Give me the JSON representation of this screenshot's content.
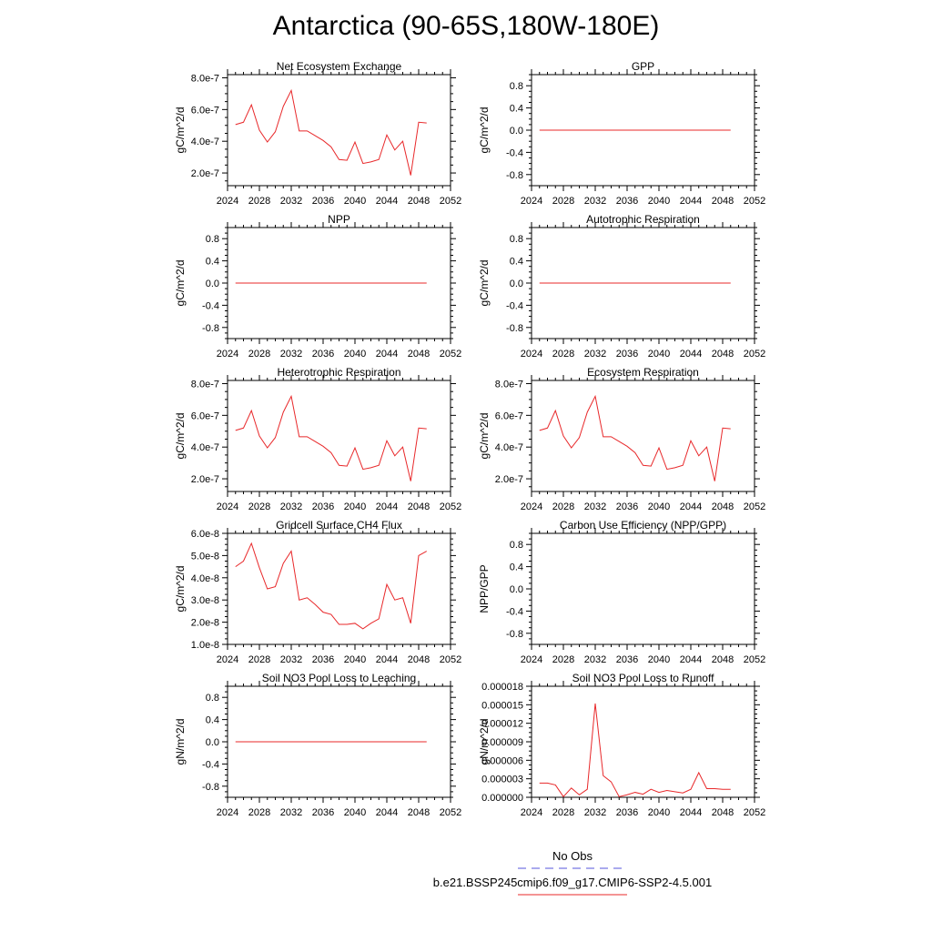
{
  "title": "Antarctica (90-65S,180W-180E)",
  "legend": {
    "obs_label": "No Obs",
    "obs_color": "#5555dd",
    "model_label": "b.e21.BSSP245cmip6.f09_g17.CMIP6-SSP2-4.5.001",
    "model_color": "#e8282a"
  },
  "chart_data": [
    {
      "type": "line",
      "title": "Net Ecosystem Exchange",
      "ylabel": "gC/m^2/d",
      "xlim": [
        2024,
        2052
      ],
      "xticks": [
        2024,
        2028,
        2032,
        2036,
        2040,
        2044,
        2048,
        2052
      ],
      "ylim": [
        1.2e-07,
        8.2e-07
      ],
      "yticks": [
        2e-07,
        4e-07,
        6e-07,
        8e-07
      ],
      "ytick_labels": [
        "2.0e-7",
        "4.0e-7",
        "6.0e-7",
        "8.0e-7"
      ],
      "series": [
        {
          "x": [
            2025,
            2026,
            2027,
            2028,
            2029,
            2030,
            2031,
            2032,
            2033,
            2034,
            2035,
            2036,
            2037,
            2038,
            2039,
            2040,
            2041,
            2042,
            2043,
            2044,
            2045,
            2046,
            2047,
            2048,
            2049
          ],
          "y": [
            5.05e-07,
            5.2e-07,
            6.3e-07,
            4.7e-07,
            3.95e-07,
            4.6e-07,
            6.2e-07,
            7.2e-07,
            4.65e-07,
            4.65e-07,
            4.35e-07,
            4.05e-07,
            3.65e-07,
            2.85e-07,
            2.8e-07,
            3.95e-07,
            2.6e-07,
            2.7e-07,
            2.85e-07,
            4.4e-07,
            3.45e-07,
            4e-07,
            1.85e-07,
            5.2e-07,
            5.15e-07
          ]
        }
      ]
    },
    {
      "type": "line",
      "title": "GPP",
      "ylabel": "gC/m^2/d",
      "xlim": [
        2024,
        2052
      ],
      "xticks": [
        2024,
        2028,
        2032,
        2036,
        2040,
        2044,
        2048,
        2052
      ],
      "ylim": [
        -1,
        1
      ],
      "yticks": [
        -0.8,
        -0.4,
        0,
        0.4,
        0.8
      ],
      "ytick_labels": [
        "-0.8",
        "-0.4",
        "0.0",
        "0.4",
        "0.8"
      ],
      "series": [
        {
          "x": [
            2025,
            2026,
            2027,
            2028,
            2029,
            2030,
            2031,
            2032,
            2033,
            2034,
            2035,
            2036,
            2037,
            2038,
            2039,
            2040,
            2041,
            2042,
            2043,
            2044,
            2045,
            2046,
            2047,
            2048,
            2049
          ],
          "y": [
            0,
            0,
            0,
            0,
            0,
            0,
            0,
            0,
            0,
            0,
            0,
            0,
            0,
            0,
            0,
            0,
            0,
            0,
            0,
            0,
            0,
            0,
            0,
            0,
            0
          ]
        }
      ]
    },
    {
      "type": "line",
      "title": "NPP",
      "ylabel": "gC/m^2/d",
      "xlim": [
        2024,
        2052
      ],
      "xticks": [
        2024,
        2028,
        2032,
        2036,
        2040,
        2044,
        2048,
        2052
      ],
      "ylim": [
        -1,
        1
      ],
      "yticks": [
        -0.8,
        -0.4,
        0,
        0.4,
        0.8
      ],
      "ytick_labels": [
        "-0.8",
        "-0.4",
        "0.0",
        "0.4",
        "0.8"
      ],
      "series": [
        {
          "x": [
            2025,
            2026,
            2027,
            2028,
            2029,
            2030,
            2031,
            2032,
            2033,
            2034,
            2035,
            2036,
            2037,
            2038,
            2039,
            2040,
            2041,
            2042,
            2043,
            2044,
            2045,
            2046,
            2047,
            2048,
            2049
          ],
          "y": [
            0,
            0,
            0,
            0,
            0,
            0,
            0,
            0,
            0,
            0,
            0,
            0,
            0,
            0,
            0,
            0,
            0,
            0,
            0,
            0,
            0,
            0,
            0,
            0,
            0
          ]
        }
      ]
    },
    {
      "type": "line",
      "title": "Autotrophic Respiration",
      "ylabel": "gC/m^2/d",
      "xlim": [
        2024,
        2052
      ],
      "xticks": [
        2024,
        2028,
        2032,
        2036,
        2040,
        2044,
        2048,
        2052
      ],
      "ylim": [
        -1,
        1
      ],
      "yticks": [
        -0.8,
        -0.4,
        0,
        0.4,
        0.8
      ],
      "ytick_labels": [
        "-0.8",
        "-0.4",
        "0.0",
        "0.4",
        "0.8"
      ],
      "series": [
        {
          "x": [
            2025,
            2026,
            2027,
            2028,
            2029,
            2030,
            2031,
            2032,
            2033,
            2034,
            2035,
            2036,
            2037,
            2038,
            2039,
            2040,
            2041,
            2042,
            2043,
            2044,
            2045,
            2046,
            2047,
            2048,
            2049
          ],
          "y": [
            0,
            0,
            0,
            0,
            0,
            0,
            0,
            0,
            0,
            0,
            0,
            0,
            0,
            0,
            0,
            0,
            0,
            0,
            0,
            0,
            0,
            0,
            0,
            0,
            0
          ]
        }
      ]
    },
    {
      "type": "line",
      "title": "Heterotrophic Respiration",
      "ylabel": "gC/m^2/d",
      "xlim": [
        2024,
        2052
      ],
      "xticks": [
        2024,
        2028,
        2032,
        2036,
        2040,
        2044,
        2048,
        2052
      ],
      "ylim": [
        1.2e-07,
        8.2e-07
      ],
      "yticks": [
        2e-07,
        4e-07,
        6e-07,
        8e-07
      ],
      "ytick_labels": [
        "2.0e-7",
        "4.0e-7",
        "6.0e-7",
        "8.0e-7"
      ],
      "series": [
        {
          "x": [
            2025,
            2026,
            2027,
            2028,
            2029,
            2030,
            2031,
            2032,
            2033,
            2034,
            2035,
            2036,
            2037,
            2038,
            2039,
            2040,
            2041,
            2042,
            2043,
            2044,
            2045,
            2046,
            2047,
            2048,
            2049
          ],
          "y": [
            5.05e-07,
            5.2e-07,
            6.3e-07,
            4.7e-07,
            3.95e-07,
            4.6e-07,
            6.2e-07,
            7.2e-07,
            4.65e-07,
            4.65e-07,
            4.35e-07,
            4.05e-07,
            3.65e-07,
            2.85e-07,
            2.8e-07,
            3.95e-07,
            2.6e-07,
            2.7e-07,
            2.85e-07,
            4.4e-07,
            3.45e-07,
            4e-07,
            1.85e-07,
            5.2e-07,
            5.15e-07
          ]
        }
      ]
    },
    {
      "type": "line",
      "title": "Ecosystem Respiration",
      "ylabel": "gC/m^2/d",
      "xlim": [
        2024,
        2052
      ],
      "xticks": [
        2024,
        2028,
        2032,
        2036,
        2040,
        2044,
        2048,
        2052
      ],
      "ylim": [
        1.2e-07,
        8.2e-07
      ],
      "yticks": [
        2e-07,
        4e-07,
        6e-07,
        8e-07
      ],
      "ytick_labels": [
        "2.0e-7",
        "4.0e-7",
        "6.0e-7",
        "8.0e-7"
      ],
      "series": [
        {
          "x": [
            2025,
            2026,
            2027,
            2028,
            2029,
            2030,
            2031,
            2032,
            2033,
            2034,
            2035,
            2036,
            2037,
            2038,
            2039,
            2040,
            2041,
            2042,
            2043,
            2044,
            2045,
            2046,
            2047,
            2048,
            2049
          ],
          "y": [
            5.05e-07,
            5.2e-07,
            6.3e-07,
            4.7e-07,
            3.95e-07,
            4.6e-07,
            6.2e-07,
            7.2e-07,
            4.65e-07,
            4.65e-07,
            4.35e-07,
            4.05e-07,
            3.65e-07,
            2.85e-07,
            2.8e-07,
            3.95e-07,
            2.6e-07,
            2.7e-07,
            2.85e-07,
            4.4e-07,
            3.45e-07,
            4e-07,
            1.85e-07,
            5.2e-07,
            5.15e-07
          ]
        }
      ]
    },
    {
      "type": "line",
      "title": "Gridcell Surface CH4 Flux",
      "ylabel": "gC/m^2/d",
      "xlim": [
        2024,
        2052
      ],
      "xticks": [
        2024,
        2028,
        2032,
        2036,
        2040,
        2044,
        2048,
        2052
      ],
      "ylim": [
        1e-08,
        6e-08
      ],
      "yticks": [
        1e-08,
        2e-08,
        3e-08,
        4e-08,
        5e-08,
        6e-08
      ],
      "ytick_labels": [
        "1.0e-8",
        "2.0e-8",
        "3.0e-8",
        "4.0e-8",
        "5.0e-8",
        "6.0e-8"
      ],
      "series": [
        {
          "x": [
            2025,
            2026,
            2027,
            2028,
            2029,
            2030,
            2031,
            2032,
            2033,
            2034,
            2035,
            2036,
            2037,
            2038,
            2039,
            2040,
            2041,
            2042,
            2043,
            2044,
            2045,
            2046,
            2047,
            2048,
            2049
          ],
          "y": [
            4.5e-08,
            4.75e-08,
            5.55e-08,
            4.45e-08,
            3.5e-08,
            3.6e-08,
            4.65e-08,
            5.2e-08,
            3e-08,
            3.1e-08,
            2.8e-08,
            2.45e-08,
            2.35e-08,
            1.9e-08,
            1.9e-08,
            1.95e-08,
            1.7e-08,
            1.95e-08,
            2.15e-08,
            3.7e-08,
            3e-08,
            3.1e-08,
            1.95e-08,
            5e-08,
            5.2e-08
          ]
        }
      ]
    },
    {
      "type": "line",
      "title": "Carbon Use Efficiency (NPP/GPP)",
      "ylabel": "NPP/GPP",
      "xlim": [
        2024,
        2052
      ],
      "xticks": [
        2024,
        2028,
        2032,
        2036,
        2040,
        2044,
        2048,
        2052
      ],
      "ylim": [
        -1,
        1
      ],
      "yticks": [
        -0.8,
        -0.4,
        0,
        0.4,
        0.8
      ],
      "ytick_labels": [
        "-0.8",
        "-0.4",
        "0.0",
        "0.4",
        "0.8"
      ],
      "series": []
    },
    {
      "type": "line",
      "title": "Soil NO3 Pool Loss to Leaching",
      "ylabel": "gN/m^2/d",
      "xlim": [
        2024,
        2052
      ],
      "xticks": [
        2024,
        2028,
        2032,
        2036,
        2040,
        2044,
        2048,
        2052
      ],
      "ylim": [
        -1,
        1
      ],
      "yticks": [
        -0.8,
        -0.4,
        0,
        0.4,
        0.8
      ],
      "ytick_labels": [
        "-0.8",
        "-0.4",
        "0.0",
        "0.4",
        "0.8"
      ],
      "series": [
        {
          "x": [
            2025,
            2026,
            2027,
            2028,
            2029,
            2030,
            2031,
            2032,
            2033,
            2034,
            2035,
            2036,
            2037,
            2038,
            2039,
            2040,
            2041,
            2042,
            2043,
            2044,
            2045,
            2046,
            2047,
            2048,
            2049
          ],
          "y": [
            0,
            0,
            0,
            0,
            0,
            0,
            0,
            0,
            0,
            0,
            0,
            0,
            0,
            0,
            0,
            0,
            0,
            0,
            0,
            0,
            0,
            0,
            0,
            0,
            0
          ]
        }
      ]
    },
    {
      "type": "line",
      "title": "Soil NO3 Pool Loss to Runoff",
      "ylabel": "gN/m^2/d",
      "xlim": [
        2024,
        2052
      ],
      "xticks": [
        2024,
        2028,
        2032,
        2036,
        2040,
        2044,
        2048,
        2052
      ],
      "ylim": [
        0,
        1.8e-05
      ],
      "yticks": [
        0,
        3e-06,
        6e-06,
        9e-06,
        1.2e-05,
        1.5e-05,
        1.8e-05
      ],
      "ytick_labels": [
        "0.000000",
        "0.000003",
        "0.000006",
        "0.000009",
        "0.000012",
        "0.000015",
        "0.000018"
      ],
      "series": [
        {
          "x": [
            2025,
            2026,
            2027,
            2028,
            2029,
            2030,
            2031,
            2032,
            2033,
            2034,
            2035,
            2036,
            2037,
            2038,
            2039,
            2040,
            2041,
            2042,
            2043,
            2044,
            2045,
            2046,
            2047,
            2048,
            2049
          ],
          "y": [
            2.3e-06,
            2.3e-06,
            2e-06,
            1e-07,
            1.5e-06,
            4e-07,
            1.3e-06,
            1.52e-05,
            3.5e-06,
            2.5e-06,
            1e-07,
            4e-07,
            8e-07,
            5e-07,
            1.3e-06,
            8e-07,
            1.1e-06,
            9e-07,
            7e-07,
            1.3e-06,
            4e-06,
            1.4e-06,
            1.4e-06,
            1.3e-06,
            1.3e-06
          ]
        }
      ]
    }
  ]
}
